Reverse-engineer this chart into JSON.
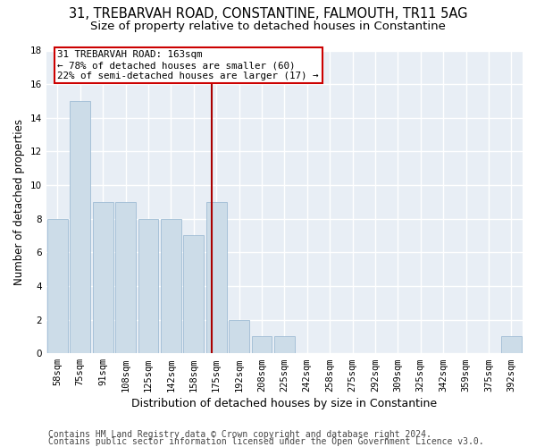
{
  "title1": "31, TREBARVAH ROAD, CONSTANTINE, FALMOUTH, TR11 5AG",
  "title2": "Size of property relative to detached houses in Constantine",
  "xlabel": "Distribution of detached houses by size in Constantine",
  "ylabel": "Number of detached properties",
  "categories": [
    "58sqm",
    "75sqm",
    "91sqm",
    "108sqm",
    "125sqm",
    "142sqm",
    "158sqm",
    "175sqm",
    "192sqm",
    "208sqm",
    "225sqm",
    "242sqm",
    "258sqm",
    "275sqm",
    "292sqm",
    "309sqm",
    "325sqm",
    "342sqm",
    "359sqm",
    "375sqm",
    "392sqm"
  ],
  "values": [
    8,
    15,
    9,
    9,
    8,
    8,
    7,
    9,
    2,
    1,
    1,
    0,
    0,
    0,
    0,
    0,
    0,
    0,
    0,
    0,
    1
  ],
  "bar_color": "#ccdce8",
  "bar_edge_color": "#9fbcd4",
  "background_color": "#e8eef5",
  "grid_color": "#ffffff",
  "vline_x": 6.78,
  "vline_color": "#aa0000",
  "annotation_line1": "31 TREBARVAH ROAD: 163sqm",
  "annotation_line2": "← 78% of detached houses are smaller (60)",
  "annotation_line3": "22% of semi-detached houses are larger (17) →",
  "annotation_box_color": "#cc0000",
  "ylim": [
    0,
    18
  ],
  "yticks": [
    0,
    2,
    4,
    6,
    8,
    10,
    12,
    14,
    16,
    18
  ],
  "footer1": "Contains HM Land Registry data © Crown copyright and database right 2024.",
  "footer2": "Contains public sector information licensed under the Open Government Licence v3.0.",
  "title1_fontsize": 10.5,
  "title2_fontsize": 9.5,
  "tick_fontsize": 7.5,
  "ylabel_fontsize": 8.5,
  "xlabel_fontsize": 9,
  "annotation_fontsize": 7.8,
  "footer_fontsize": 7
}
